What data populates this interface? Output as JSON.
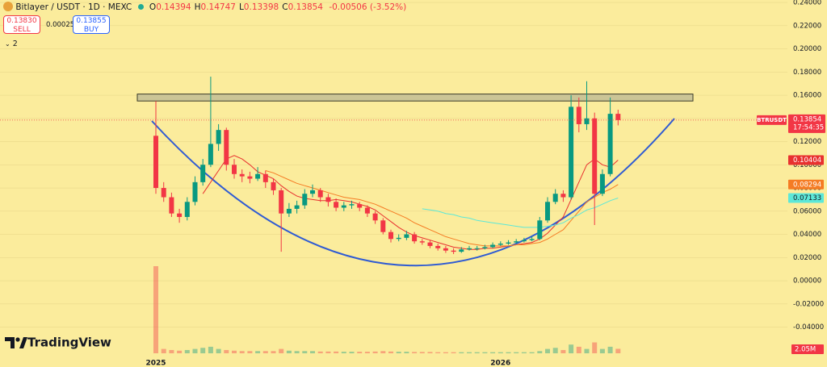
{
  "header": {
    "symbol": "Bitlayer / USDT · 1D · MEXC",
    "ohlc": [
      {
        "key": "O",
        "value": "0.14394"
      },
      {
        "key": "H",
        "value": "0.14747"
      },
      {
        "key": "L",
        "value": "0.13398"
      },
      {
        "key": "C",
        "value": "0.13854"
      }
    ],
    "change": "-0.00506 (-3.52%)",
    "sell": {
      "price": "0.13830",
      "label": "SELL"
    },
    "spread": "0.00025",
    "buy": {
      "price": "0.13855",
      "label": "BUY"
    },
    "indicators_toggle": "2"
  },
  "chart_data": {
    "type": "candlestick",
    "symbol_label": "BTRUSDT",
    "countdown": "17:54:35",
    "categories": [
      "2025",
      null,
      null,
      null,
      null,
      null,
      null,
      null,
      null,
      null,
      null,
      null,
      null,
      null,
      null,
      null,
      null,
      null,
      null,
      null,
      null,
      null,
      null,
      null,
      null,
      null,
      null,
      null,
      null,
      null,
      null,
      null,
      null,
      null,
      null,
      null,
      null,
      null,
      null,
      null,
      null,
      null,
      null,
      null,
      "2026",
      null,
      null,
      null,
      null,
      null,
      null,
      null,
      null,
      null,
      null,
      null,
      null,
      null,
      null,
      null
    ],
    "candles": {
      "open": [
        0.125,
        0.08,
        0.072,
        0.058,
        0.055,
        0.068,
        0.085,
        0.1,
        0.118,
        0.13,
        0.1,
        0.092,
        0.09,
        0.088,
        0.092,
        0.085,
        0.078,
        0.058,
        0.062,
        0.065,
        0.075,
        0.078,
        0.072,
        0.068,
        0.063,
        0.065,
        0.066,
        0.063,
        0.058,
        0.052,
        0.042,
        0.036,
        0.037,
        0.04,
        0.034,
        0.033,
        0.03,
        0.028,
        0.026,
        0.025,
        0.027,
        0.028,
        0.028,
        0.029,
        0.031,
        0.032,
        0.033,
        0.034,
        0.035,
        0.036,
        0.052,
        0.068,
        0.075,
        0.072,
        0.15,
        0.135,
        0.14,
        0.075,
        0.092,
        0.14394
      ],
      "high": [
        0.155,
        0.085,
        0.076,
        0.062,
        0.072,
        0.09,
        0.105,
        0.176,
        0.135,
        0.132,
        0.105,
        0.096,
        0.094,
        0.098,
        0.095,
        0.088,
        0.08,
        0.067,
        0.069,
        0.079,
        0.083,
        0.08,
        0.075,
        0.071,
        0.068,
        0.069,
        0.068,
        0.065,
        0.06,
        0.054,
        0.044,
        0.04,
        0.043,
        0.042,
        0.036,
        0.035,
        0.032,
        0.03,
        0.028,
        0.029,
        0.03,
        0.03,
        0.031,
        0.033,
        0.034,
        0.035,
        0.036,
        0.037,
        0.038,
        0.055,
        0.072,
        0.079,
        0.078,
        0.16,
        0.158,
        0.172,
        0.145,
        0.096,
        0.158,
        0.14747
      ],
      "low": [
        0.075,
        0.068,
        0.055,
        0.05,
        0.052,
        0.065,
        0.082,
        0.098,
        0.112,
        0.095,
        0.088,
        0.085,
        0.084,
        0.086,
        0.08,
        0.074,
        0.025,
        0.055,
        0.058,
        0.062,
        0.072,
        0.068,
        0.064,
        0.06,
        0.06,
        0.062,
        0.06,
        0.055,
        0.049,
        0.04,
        0.033,
        0.034,
        0.035,
        0.032,
        0.031,
        0.028,
        0.026,
        0.024,
        0.023,
        0.024,
        0.026,
        0.026,
        0.027,
        0.028,
        0.03,
        0.031,
        0.032,
        0.033,
        0.034,
        0.035,
        0.05,
        0.066,
        0.068,
        0.07,
        0.128,
        0.13,
        0.048,
        0.073,
        0.09,
        0.13398
      ],
      "close": [
        0.08,
        0.072,
        0.058,
        0.055,
        0.068,
        0.085,
        0.1,
        0.118,
        0.13,
        0.1,
        0.092,
        0.09,
        0.088,
        0.092,
        0.085,
        0.078,
        0.058,
        0.062,
        0.065,
        0.075,
        0.078,
        0.072,
        0.068,
        0.063,
        0.065,
        0.066,
        0.063,
        0.058,
        0.052,
        0.042,
        0.036,
        0.037,
        0.04,
        0.034,
        0.033,
        0.03,
        0.028,
        0.026,
        0.025,
        0.027,
        0.028,
        0.028,
        0.029,
        0.031,
        0.032,
        0.033,
        0.034,
        0.035,
        0.036,
        0.052,
        0.068,
        0.075,
        0.072,
        0.15,
        0.135,
        0.14,
        0.075,
        0.092,
        0.14394,
        0.13854
      ]
    },
    "up_color": "#089981",
    "down_color": "#f23645",
    "ylim": [
      -0.0744,
      0.2421
    ],
    "yticks": [
      {
        "value": 0.24,
        "label": "0.24000"
      },
      {
        "value": 0.22,
        "label": "0.22000"
      },
      {
        "value": 0.2,
        "label": "0.20000"
      },
      {
        "value": 0.18,
        "label": "0.18000"
      },
      {
        "value": 0.16,
        "label": "0.16000"
      },
      {
        "value": 0.14,
        "label": "0.14000"
      },
      {
        "value": 0.12,
        "label": "0.12000"
      },
      {
        "value": 0.1,
        "label": "0.10000"
      },
      {
        "value": 0.08,
        "label": "0.08000"
      },
      {
        "value": 0.06,
        "label": "0.06000"
      },
      {
        "value": 0.04,
        "label": "0.04000"
      },
      {
        "value": 0.02,
        "label": "0.02000"
      },
      {
        "value": 0,
        "label": "0.00000"
      },
      {
        "value": -0.02,
        "label": "-0.02000"
      },
      {
        "value": -0.04,
        "label": "-0.04000"
      }
    ],
    "grid": true,
    "zone": [
      0.155,
      0.161
    ],
    "moving_averages": [
      {
        "color": "#e8312f",
        "values": [
          null,
          null,
          null,
          null,
          null,
          null,
          0.075,
          0.085,
          0.095,
          0.105,
          0.108,
          0.105,
          0.1,
          0.094,
          0.091,
          0.088,
          0.082,
          0.077,
          0.073,
          0.071,
          0.07,
          0.069,
          0.069,
          0.07,
          0.069,
          0.068,
          0.066,
          0.064,
          0.061,
          0.056,
          0.051,
          0.046,
          0.042,
          0.039,
          0.037,
          0.035,
          0.033,
          0.031,
          0.029,
          0.028,
          0.027,
          0.027,
          0.028,
          0.028,
          0.029,
          0.03,
          0.031,
          0.032,
          0.033,
          0.036,
          0.041,
          0.048,
          0.055,
          0.07,
          0.085,
          0.1,
          0.105,
          0.1,
          0.098,
          0.10404
        ]
      },
      {
        "color": "#f57c24",
        "values": [
          null,
          null,
          null,
          null,
          null,
          null,
          null,
          null,
          null,
          null,
          null,
          null,
          null,
          null,
          0.095,
          0.093,
          0.09,
          0.087,
          0.084,
          0.082,
          0.08,
          0.078,
          0.076,
          0.074,
          0.072,
          0.071,
          0.07,
          0.068,
          0.066,
          0.063,
          0.06,
          0.057,
          0.054,
          0.05,
          0.047,
          0.044,
          0.041,
          0.038,
          0.036,
          0.034,
          0.032,
          0.031,
          0.03,
          0.03,
          0.03,
          0.03,
          0.031,
          0.031,
          0.032,
          0.033,
          0.036,
          0.04,
          0.044,
          0.052,
          0.06,
          0.068,
          0.072,
          0.076,
          0.079,
          0.08294
        ]
      },
      {
        "color": "#5ce8d8",
        "values": [
          null,
          null,
          null,
          null,
          null,
          null,
          null,
          null,
          null,
          null,
          null,
          null,
          null,
          null,
          null,
          null,
          null,
          null,
          null,
          null,
          null,
          null,
          null,
          null,
          null,
          null,
          null,
          null,
          null,
          null,
          null,
          null,
          null,
          null,
          0.062,
          0.061,
          0.06,
          0.058,
          0.057,
          0.055,
          0.054,
          0.052,
          0.051,
          0.05,
          0.049,
          0.048,
          0.047,
          0.046,
          0.046,
          0.046,
          0.047,
          0.048,
          0.05,
          0.054,
          0.057,
          0.061,
          0.063,
          0.066,
          0.069,
          0.07133
        ]
      }
    ],
    "volume": {
      "values": [
        40,
        2,
        1.5,
        1.2,
        1.5,
        2,
        2.5,
        3,
        2,
        1.5,
        1.2,
        1,
        1,
        1,
        1,
        1,
        2,
        1.2,
        1,
        1,
        1,
        0.8,
        0.8,
        0.8,
        0.7,
        0.7,
        0.7,
        0.7,
        0.8,
        1,
        0.8,
        0.7,
        0.7,
        0.6,
        0.6,
        0.6,
        0.5,
        0.5,
        0.5,
        0.5,
        0.5,
        0.5,
        0.5,
        0.5,
        0.5,
        0.5,
        0.5,
        0.5,
        0.5,
        1,
        2,
        2.5,
        1.5,
        4,
        3,
        2,
        5,
        2,
        3,
        2.05
      ],
      "value_labels": [
        null,
        null,
        null,
        null,
        null,
        null,
        null,
        null,
        null,
        null,
        null,
        null,
        null,
        null,
        null,
        null,
        null,
        null,
        null,
        null,
        null,
        null,
        null,
        null,
        null,
        null,
        null,
        null,
        null,
        null,
        null,
        null,
        null,
        null,
        null,
        null,
        null,
        null,
        null,
        null,
        null,
        null,
        null,
        null,
        null,
        null,
        null,
        null,
        null,
        null,
        null,
        null,
        null,
        null,
        null,
        null,
        null,
        null,
        null,
        "2.05M"
      ],
      "label_color": "#f23645"
    }
  },
  "branding": "TradingView"
}
